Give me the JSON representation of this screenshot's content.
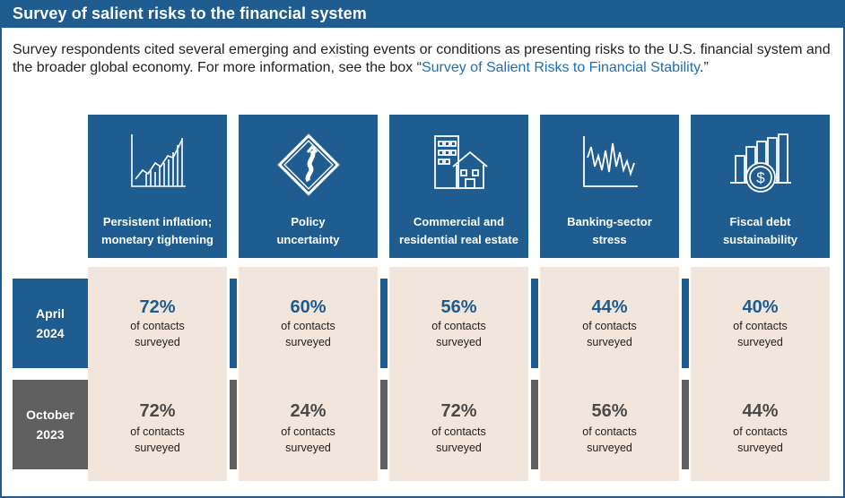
{
  "title": "Survey of salient risks to the financial system",
  "intro": {
    "text_before": "Survey respondents cited several emerging and existing events or conditions as presenting risks to the U.S. financial system and the broader global economy. For more information, see the box “",
    "link": "Survey of Salient Risks to Financial Stability",
    "text_after": ".”"
  },
  "colors": {
    "header_blue": "#1f5c8f",
    "april_blue": "#1f5c8f",
    "october_gray": "#5f5f5f",
    "cell_beige": "#f1e5dc",
    "link_blue": "#1f6fb0"
  },
  "categories": [
    {
      "line1": "Persistent inflation;",
      "line2": "monetary tightening",
      "icon": "rising-bar-chart-icon"
    },
    {
      "line1": "Policy",
      "line2": "uncertainty",
      "icon": "winding-road-sign-icon"
    },
    {
      "line1": "Commercial and",
      "line2": "residential real estate",
      "icon": "buildings-icon"
    },
    {
      "line1": "Banking-sector",
      "line2": "stress",
      "icon": "volatile-line-chart-icon"
    },
    {
      "line1": "Fiscal debt",
      "line2": "sustainability",
      "icon": "dollar-coin-bars-icon"
    }
  ],
  "rows": [
    {
      "line1": "April",
      "line2": "2024"
    },
    {
      "line1": "October",
      "line2": "2023"
    }
  ],
  "cell_sub": {
    "line1": "of contacts",
    "line2": "surveyed"
  },
  "chart_data": {
    "type": "table",
    "title": "Survey of salient risks to the financial system",
    "categories": [
      "Persistent inflation; monetary tightening",
      "Policy uncertainty",
      "Commercial and residential real estate",
      "Banking-sector stress",
      "Fiscal debt sustainability"
    ],
    "series": [
      {
        "name": "April 2024",
        "values": [
          72,
          60,
          56,
          44,
          40
        ],
        "labels": [
          "72%",
          "60%",
          "56%",
          "44%",
          "40%"
        ]
      },
      {
        "name": "October 2023",
        "values": [
          72,
          24,
          72,
          56,
          44
        ],
        "labels": [
          "72%",
          "24%",
          "72%",
          "56%",
          "44%"
        ]
      }
    ],
    "unit": "% of contacts surveyed"
  }
}
